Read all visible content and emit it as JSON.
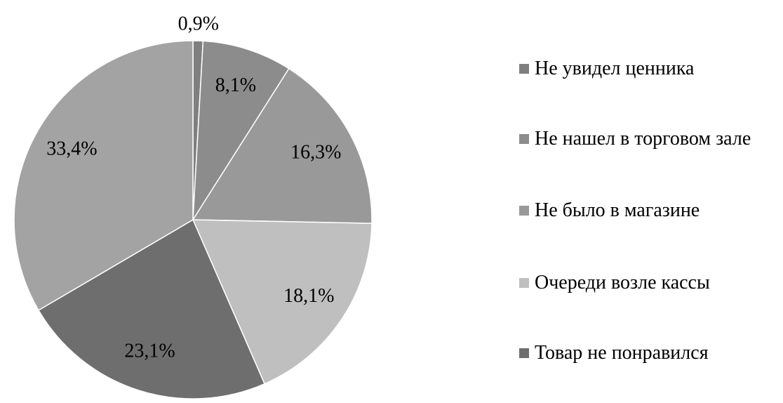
{
  "chart_data": {
    "type": "pie",
    "categories": [
      "Не увидел ценника",
      "Не нашел в торговом зале",
      "Не было в магазине",
      "Очереди возле кассы",
      "Товар не понравился",
      null
    ],
    "values": [
      0.9,
      8.1,
      16.3,
      18.1,
      23.1,
      33.4
    ],
    "value_labels": [
      "0,9%",
      "8,1%",
      "16,3%",
      "18,1%",
      "23,1%",
      "33,4%"
    ],
    "colors": [
      "#7f7f7f",
      "#8c8c8c",
      "#999999",
      "#bfbfbf",
      "#6e6e6e",
      "#a3a3a3"
    ],
    "legend": "right"
  }
}
